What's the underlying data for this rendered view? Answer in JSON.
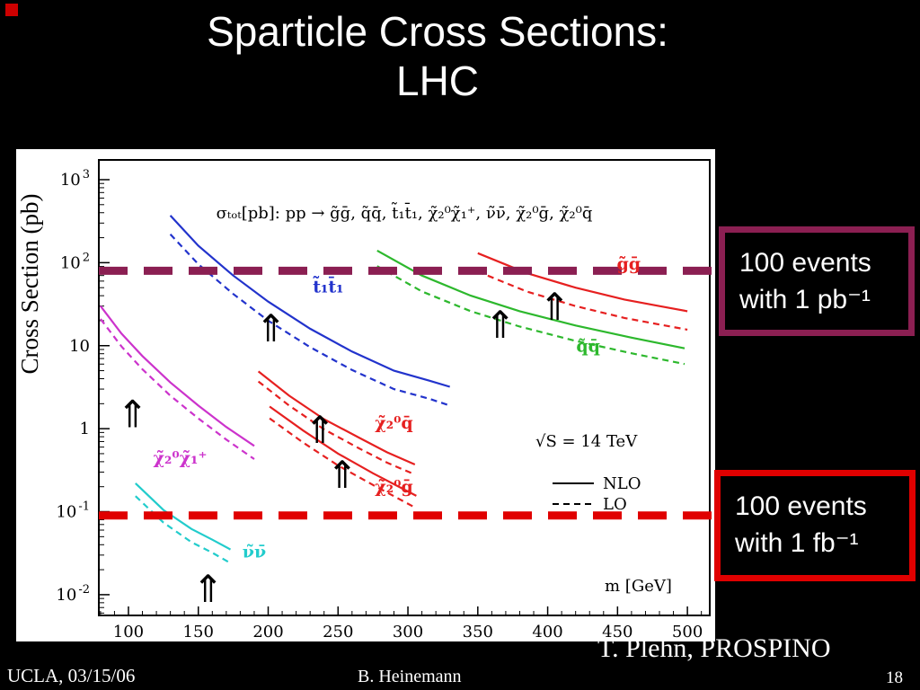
{
  "slide": {
    "title_line1": "Sparticle Cross Sections:",
    "title_line2": "LHC",
    "footer_left": "UCLA, 03/15/06",
    "footer_center": "B. Heinemann",
    "credit": "T. Plehn, PROSPINO",
    "page_number": "18",
    "accent_color": "#cc0000"
  },
  "annotations": {
    "pb_box": {
      "line1": "100 events",
      "line2": "with 1 pb⁻¹",
      "border_color": "#8b1f52"
    },
    "fb_box": {
      "line1": "100 events",
      "line2": "with 1 fb⁻¹",
      "border_color": "#e00000"
    }
  },
  "chart_data": {
    "type": "line",
    "title": "σₜₒₜ[pb]: pp → g̃ḡ, q̃q̄, t̃₁t̄₁, χ̃₂⁰χ̃₁⁺, ν̃ν̄, χ̃₂⁰ḡ, χ̃₂⁰q̄",
    "xlabel": "m [GeV]",
    "ylabel": "Cross Section (pb)",
    "x_ticks": [
      100,
      150,
      200,
      250,
      300,
      350,
      400,
      450,
      500
    ],
    "xlim": [
      78.8,
      516
    ],
    "ylim_log": [
      -2.25,
      3.238
    ],
    "y_ticks_exp": [
      3,
      2,
      1,
      0,
      -1,
      -2
    ],
    "annotation_sqrt_s": "√S = 14 TeV",
    "legend": [
      {
        "label": "NLO",
        "style": "solid"
      },
      {
        "label": "LO",
        "style": "dashed"
      }
    ],
    "threshold_lines": [
      {
        "pb": 80,
        "color": "#8b1f52",
        "label": "100 events with 1 pb⁻¹"
      },
      {
        "pb": 0.09,
        "color": "#e00000",
        "label": "100 events with 1 fb⁻¹"
      }
    ],
    "series": [
      {
        "name": "t̃₁t̄₁",
        "color": "#2233cc",
        "nlo": [
          [
            130,
            370
          ],
          [
            150,
            160
          ],
          [
            175,
            70
          ],
          [
            200,
            34
          ],
          [
            230,
            16
          ],
          [
            260,
            8.5
          ],
          [
            290,
            5.0
          ],
          [
            315,
            3.8
          ],
          [
            330,
            3.2
          ]
        ],
        "lo": [
          [
            130,
            220
          ],
          [
            150,
            96
          ],
          [
            175,
            42
          ],
          [
            200,
            20
          ],
          [
            230,
            9.6
          ],
          [
            260,
            5.1
          ],
          [
            290,
            3.0
          ],
          [
            315,
            2.3
          ],
          [
            330,
            1.9
          ]
        ]
      },
      {
        "name": "χ̃₂⁰χ̃₁⁺",
        "color": "#cc33cc",
        "nlo": [
          [
            80,
            30
          ],
          [
            95,
            14
          ],
          [
            110,
            7.5
          ],
          [
            130,
            3.6
          ],
          [
            150,
            1.9
          ],
          [
            170,
            1.05
          ],
          [
            190,
            0.62
          ]
        ],
        "lo": [
          [
            80,
            21
          ],
          [
            95,
            9.8
          ],
          [
            110,
            5.2
          ],
          [
            130,
            2.5
          ],
          [
            150,
            1.33
          ],
          [
            170,
            0.74
          ],
          [
            190,
            0.43
          ]
        ]
      },
      {
        "name": "ν̃ν̄",
        "color": "#22cccc",
        "nlo": [
          [
            105,
            0.22
          ],
          [
            125,
            0.105
          ],
          [
            145,
            0.062
          ],
          [
            160,
            0.046
          ],
          [
            173,
            0.035
          ]
        ],
        "lo": [
          [
            105,
            0.154
          ],
          [
            125,
            0.074
          ],
          [
            145,
            0.043
          ],
          [
            160,
            0.032
          ],
          [
            173,
            0.024
          ]
        ]
      },
      {
        "name": "χ̃₂⁰q̄",
        "color": "#e62020",
        "nlo": [
          [
            193,
            4.9
          ],
          [
            215,
            2.5
          ],
          [
            240,
            1.3
          ],
          [
            265,
            0.78
          ],
          [
            285,
            0.52
          ],
          [
            305,
            0.37
          ]
        ],
        "lo": [
          [
            193,
            3.7
          ],
          [
            215,
            1.9
          ],
          [
            240,
            0.98
          ],
          [
            265,
            0.58
          ],
          [
            285,
            0.39
          ],
          [
            305,
            0.28
          ]
        ]
      },
      {
        "name": "χ̃₂⁰ḡ",
        "color": "#e62020",
        "nlo": [
          [
            201,
            1.85
          ],
          [
            225,
            0.95
          ],
          [
            250,
            0.5
          ],
          [
            275,
            0.29
          ],
          [
            306,
            0.155
          ]
        ],
        "lo": [
          [
            201,
            1.33
          ],
          [
            225,
            0.68
          ],
          [
            250,
            0.36
          ],
          [
            275,
            0.21
          ],
          [
            306,
            0.11
          ]
        ]
      },
      {
        "name": "q̃q̄",
        "color": "#2db82d",
        "nlo": [
          [
            278,
            140
          ],
          [
            310,
            70
          ],
          [
            345,
            40
          ],
          [
            380,
            26
          ],
          [
            420,
            17.5
          ],
          [
            460,
            12.5
          ],
          [
            498,
            9.3
          ]
        ],
        "lo": [
          [
            278,
            91
          ],
          [
            310,
            45
          ],
          [
            345,
            26
          ],
          [
            380,
            17
          ],
          [
            420,
            11.4
          ],
          [
            460,
            8.1
          ],
          [
            498,
            6.0
          ]
        ]
      },
      {
        "name": "g̃ḡ",
        "color": "#e62020",
        "nlo": [
          [
            350,
            130
          ],
          [
            385,
            75
          ],
          [
            420,
            50
          ],
          [
            455,
            36
          ],
          [
            480,
            30
          ],
          [
            500,
            26
          ]
        ],
        "lo": [
          [
            350,
            78
          ],
          [
            385,
            45
          ],
          [
            420,
            30
          ],
          [
            455,
            21.6
          ],
          [
            480,
            18
          ],
          [
            500,
            15.6
          ]
        ]
      }
    ],
    "labels": [
      {
        "text": "t̃₁t̄₁",
        "color": "#2233cc",
        "m": 243,
        "pb": 44
      },
      {
        "text": "g̃ḡ",
        "color": "#e62020",
        "m": 458,
        "pb": 83
      },
      {
        "text": "q̃q̄",
        "color": "#2db82d",
        "m": 429,
        "pb": 8.4
      },
      {
        "text": "χ̃₂⁰q̄",
        "color": "#e62020",
        "m": 290,
        "pb": 1.0
      },
      {
        "text": "χ̃₂⁰ḡ",
        "color": "#e62020",
        "m": 290,
        "pb": 0.17
      },
      {
        "text": "χ̃₂⁰χ̃₁⁺",
        "color": "#cc33cc",
        "m": 137,
        "pb": 0.38
      },
      {
        "text": "ν̃ν̄",
        "color": "#22cccc",
        "m": 190,
        "pb": 0.028
      }
    ],
    "arrows": [
      {
        "m": 103,
        "pb": 2.7
      },
      {
        "m": 157,
        "pb": 0.021
      },
      {
        "m": 202,
        "pb": 29
      },
      {
        "m": 237,
        "pb": 1.74
      },
      {
        "m": 253,
        "pb": 0.5
      },
      {
        "m": 366,
        "pb": 32
      },
      {
        "m": 405,
        "pb": 53
      }
    ]
  }
}
